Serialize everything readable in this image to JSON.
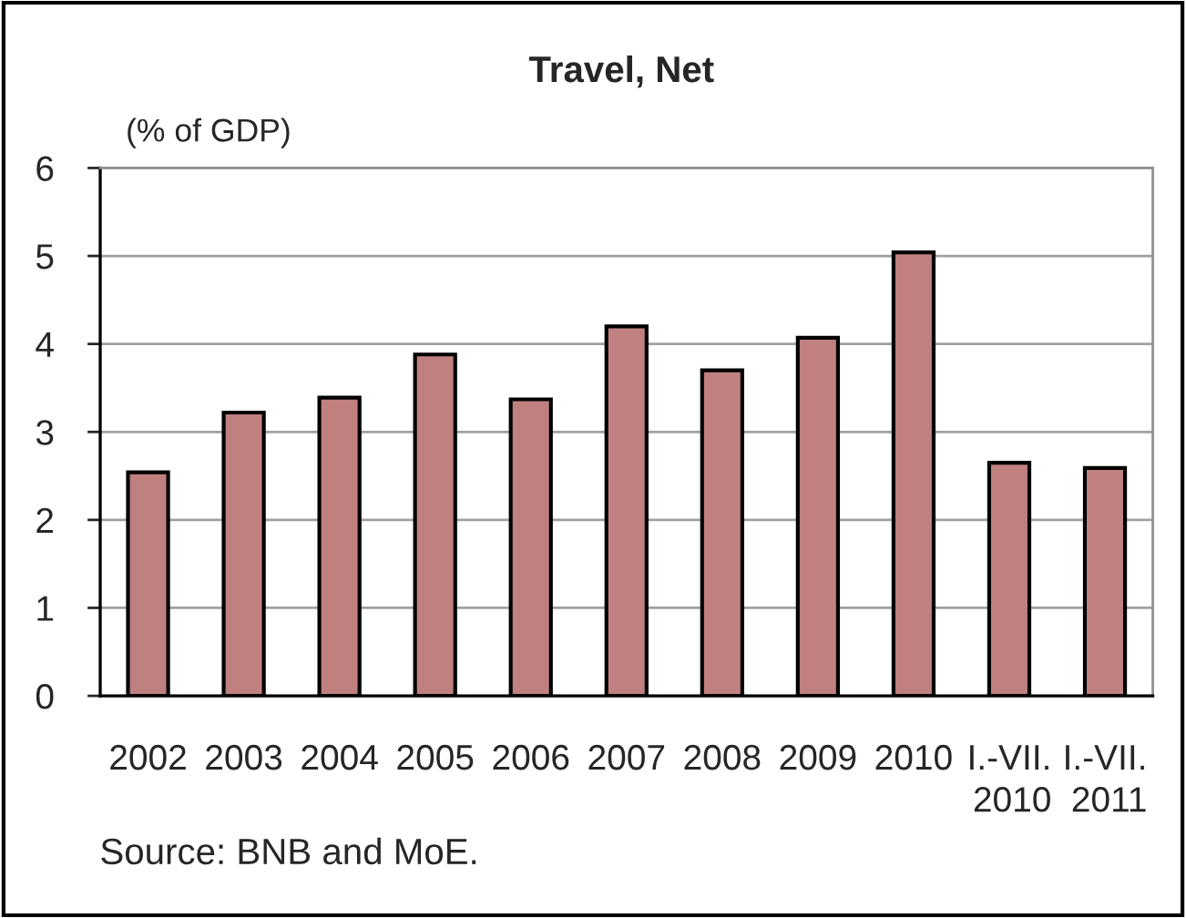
{
  "chart_data": {
    "type": "bar",
    "title": "Travel, Net",
    "ylabel": "(% of GDP)",
    "categories": [
      "2002",
      "2003",
      "2004",
      "2005",
      "2006",
      "2007",
      "2008",
      "2009",
      "2010",
      "I.-VII.\n2010",
      "I.-VII.\n2011"
    ],
    "values": [
      2.54,
      3.22,
      3.39,
      3.88,
      3.37,
      4.2,
      3.7,
      4.07,
      5.04,
      2.65,
      2.59
    ],
    "color": "#c08080",
    "ylim": [
      0,
      6
    ],
    "yticks": [
      0,
      1,
      2,
      3,
      4,
      5,
      6
    ],
    "grid": "y",
    "annotations": [
      "Source: BNB and MoE."
    ]
  }
}
